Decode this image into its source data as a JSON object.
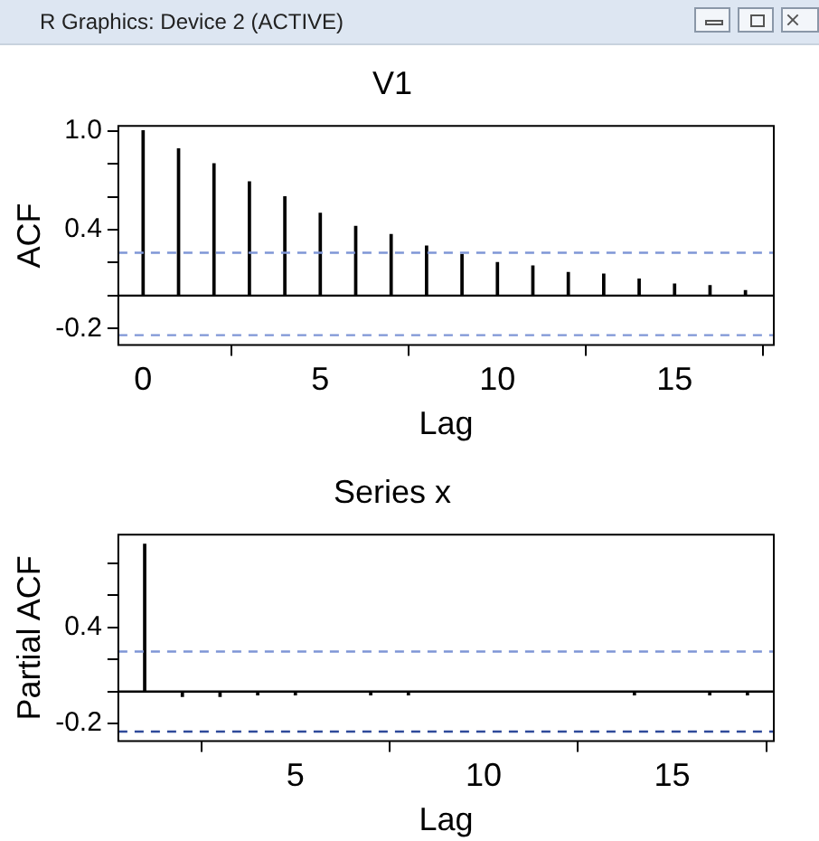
{
  "chart_data": [
    {
      "type": "bar",
      "title": "V1",
      "xlabel": "Lag",
      "ylabel": "ACF",
      "annotations": [
        "R Graphics: Device 2 (ACTIVE)"
      ],
      "x": [
        0,
        1,
        2,
        3,
        4,
        5,
        6,
        7,
        8,
        9,
        10,
        11,
        12,
        13,
        14,
        15,
        16,
        17
      ],
      "values": [
        1.0,
        0.89,
        0.8,
        0.69,
        0.6,
        0.5,
        0.42,
        0.37,
        0.3,
        0.25,
        0.2,
        0.18,
        0.14,
        0.13,
        0.1,
        0.07,
        0.06,
        0.03
      ],
      "color": "#000000",
      "xlim": [
        -0.7,
        17.8
      ],
      "xticks": [
        0,
        5,
        10,
        15
      ],
      "ylim": [
        -0.3,
        1.03
      ],
      "yticks": [
        {
          "value": -0.2,
          "label": "-0.2"
        },
        {
          "value": 0,
          "label": null
        },
        {
          "value": 0.2,
          "label": null
        },
        {
          "value": 0.4,
          "label": "0.4"
        },
        {
          "value": 0.6,
          "label": null
        },
        {
          "value": 0.8,
          "label": null
        },
        {
          "value": 1.0,
          "label": "1.0"
        }
      ],
      "grid": false,
      "ref_lines": [
        {
          "axis": "y",
          "value": 0,
          "color": "#000000",
          "line_style": "solid"
        },
        {
          "axis": "y",
          "value": 0.26,
          "color": "#7f96d6",
          "line_style": "dashed"
        },
        {
          "axis": "y",
          "value": -0.24,
          "color": "#7f96d6",
          "line_style": "dashed"
        }
      ]
    },
    {
      "type": "bar",
      "title": "Series x",
      "xlabel": "Lag",
      "ylabel": "Partial ACF",
      "x": [
        1,
        2,
        3,
        4,
        5,
        6,
        7,
        8,
        9,
        10,
        11,
        12,
        13,
        14,
        15,
        16,
        17
      ],
      "values": [
        0.92,
        -0.03,
        -0.03,
        -0.02,
        -0.02,
        null,
        -0.02,
        -0.02,
        0,
        0,
        0,
        0,
        null,
        -0.02,
        null,
        -0.02,
        -0.02
      ],
      "color": "#000000",
      "xlim": [
        0.3,
        17.7
      ],
      "xticks": [
        5,
        10,
        15
      ],
      "ylim": [
        -0.31,
        0.98
      ],
      "yticks": [
        {
          "value": -0.2,
          "label": "-0.2"
        },
        {
          "value": 0,
          "label": null
        },
        {
          "value": 0.2,
          "label": null
        },
        {
          "value": 0.4,
          "label": "0.4"
        },
        {
          "value": 0.6,
          "label": null
        },
        {
          "value": 0.8,
          "label": null
        }
      ],
      "grid": false,
      "ref_lines": [
        {
          "axis": "y",
          "value": 0,
          "color": "#000000",
          "line_style": "solid"
        },
        {
          "axis": "y",
          "value": 0.25,
          "color": "#7f96d6",
          "line_style": "dashed"
        },
        {
          "axis": "y",
          "value": -0.25,
          "color": "#2f4a9a",
          "line_style": "dashed"
        }
      ]
    }
  ]
}
